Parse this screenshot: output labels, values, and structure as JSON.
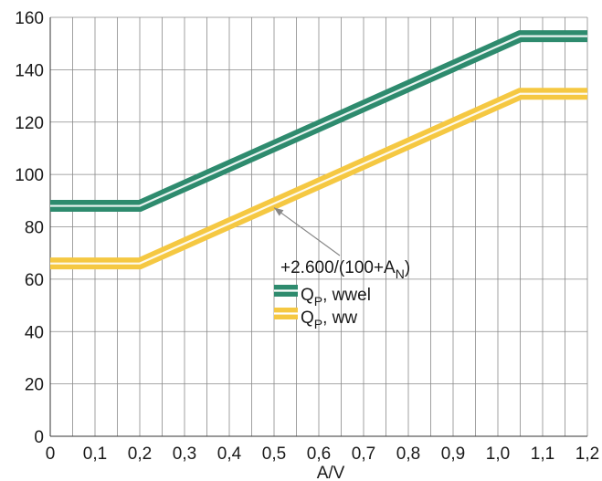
{
  "chart_data": {
    "type": "line",
    "xlabel": "A/V",
    "ylabel": "",
    "xlim": [
      0,
      1.2
    ],
    "ylim": [
      0,
      160
    ],
    "grid": true,
    "x_ticks": [
      "0",
      "0,1",
      "0,2",
      "0,3",
      "0,4",
      "0,5",
      "0,6",
      "0,7",
      "0,8",
      "0,9",
      "1,0",
      "1,1",
      "1,2"
    ],
    "y_ticks": [
      "0",
      "20",
      "40",
      "60",
      "80",
      "100",
      "120",
      "140",
      "160"
    ],
    "series": [
      {
        "name_main": "Q",
        "name_sub": "P",
        "name_rest": ", wwel",
        "color": "#2e8b6e",
        "points": [
          [
            0,
            88
          ],
          [
            0.2,
            88
          ],
          [
            1.05,
            152.8
          ],
          [
            1.2,
            152.8
          ]
        ]
      },
      {
        "name_main": "Q",
        "name_sub": "P",
        "name_rest": ", ww",
        "color": "#f5c842",
        "points": [
          [
            0,
            66
          ],
          [
            0.2,
            66
          ],
          [
            1.05,
            130.8
          ],
          [
            1.2,
            130.8
          ]
        ]
      }
    ],
    "annotation": {
      "text_main": "+2.600/(100+A",
      "text_sub": "N",
      "text_close": ")",
      "arrow_target": [
        0.5,
        88
      ]
    },
    "legend_position": "center-right"
  }
}
